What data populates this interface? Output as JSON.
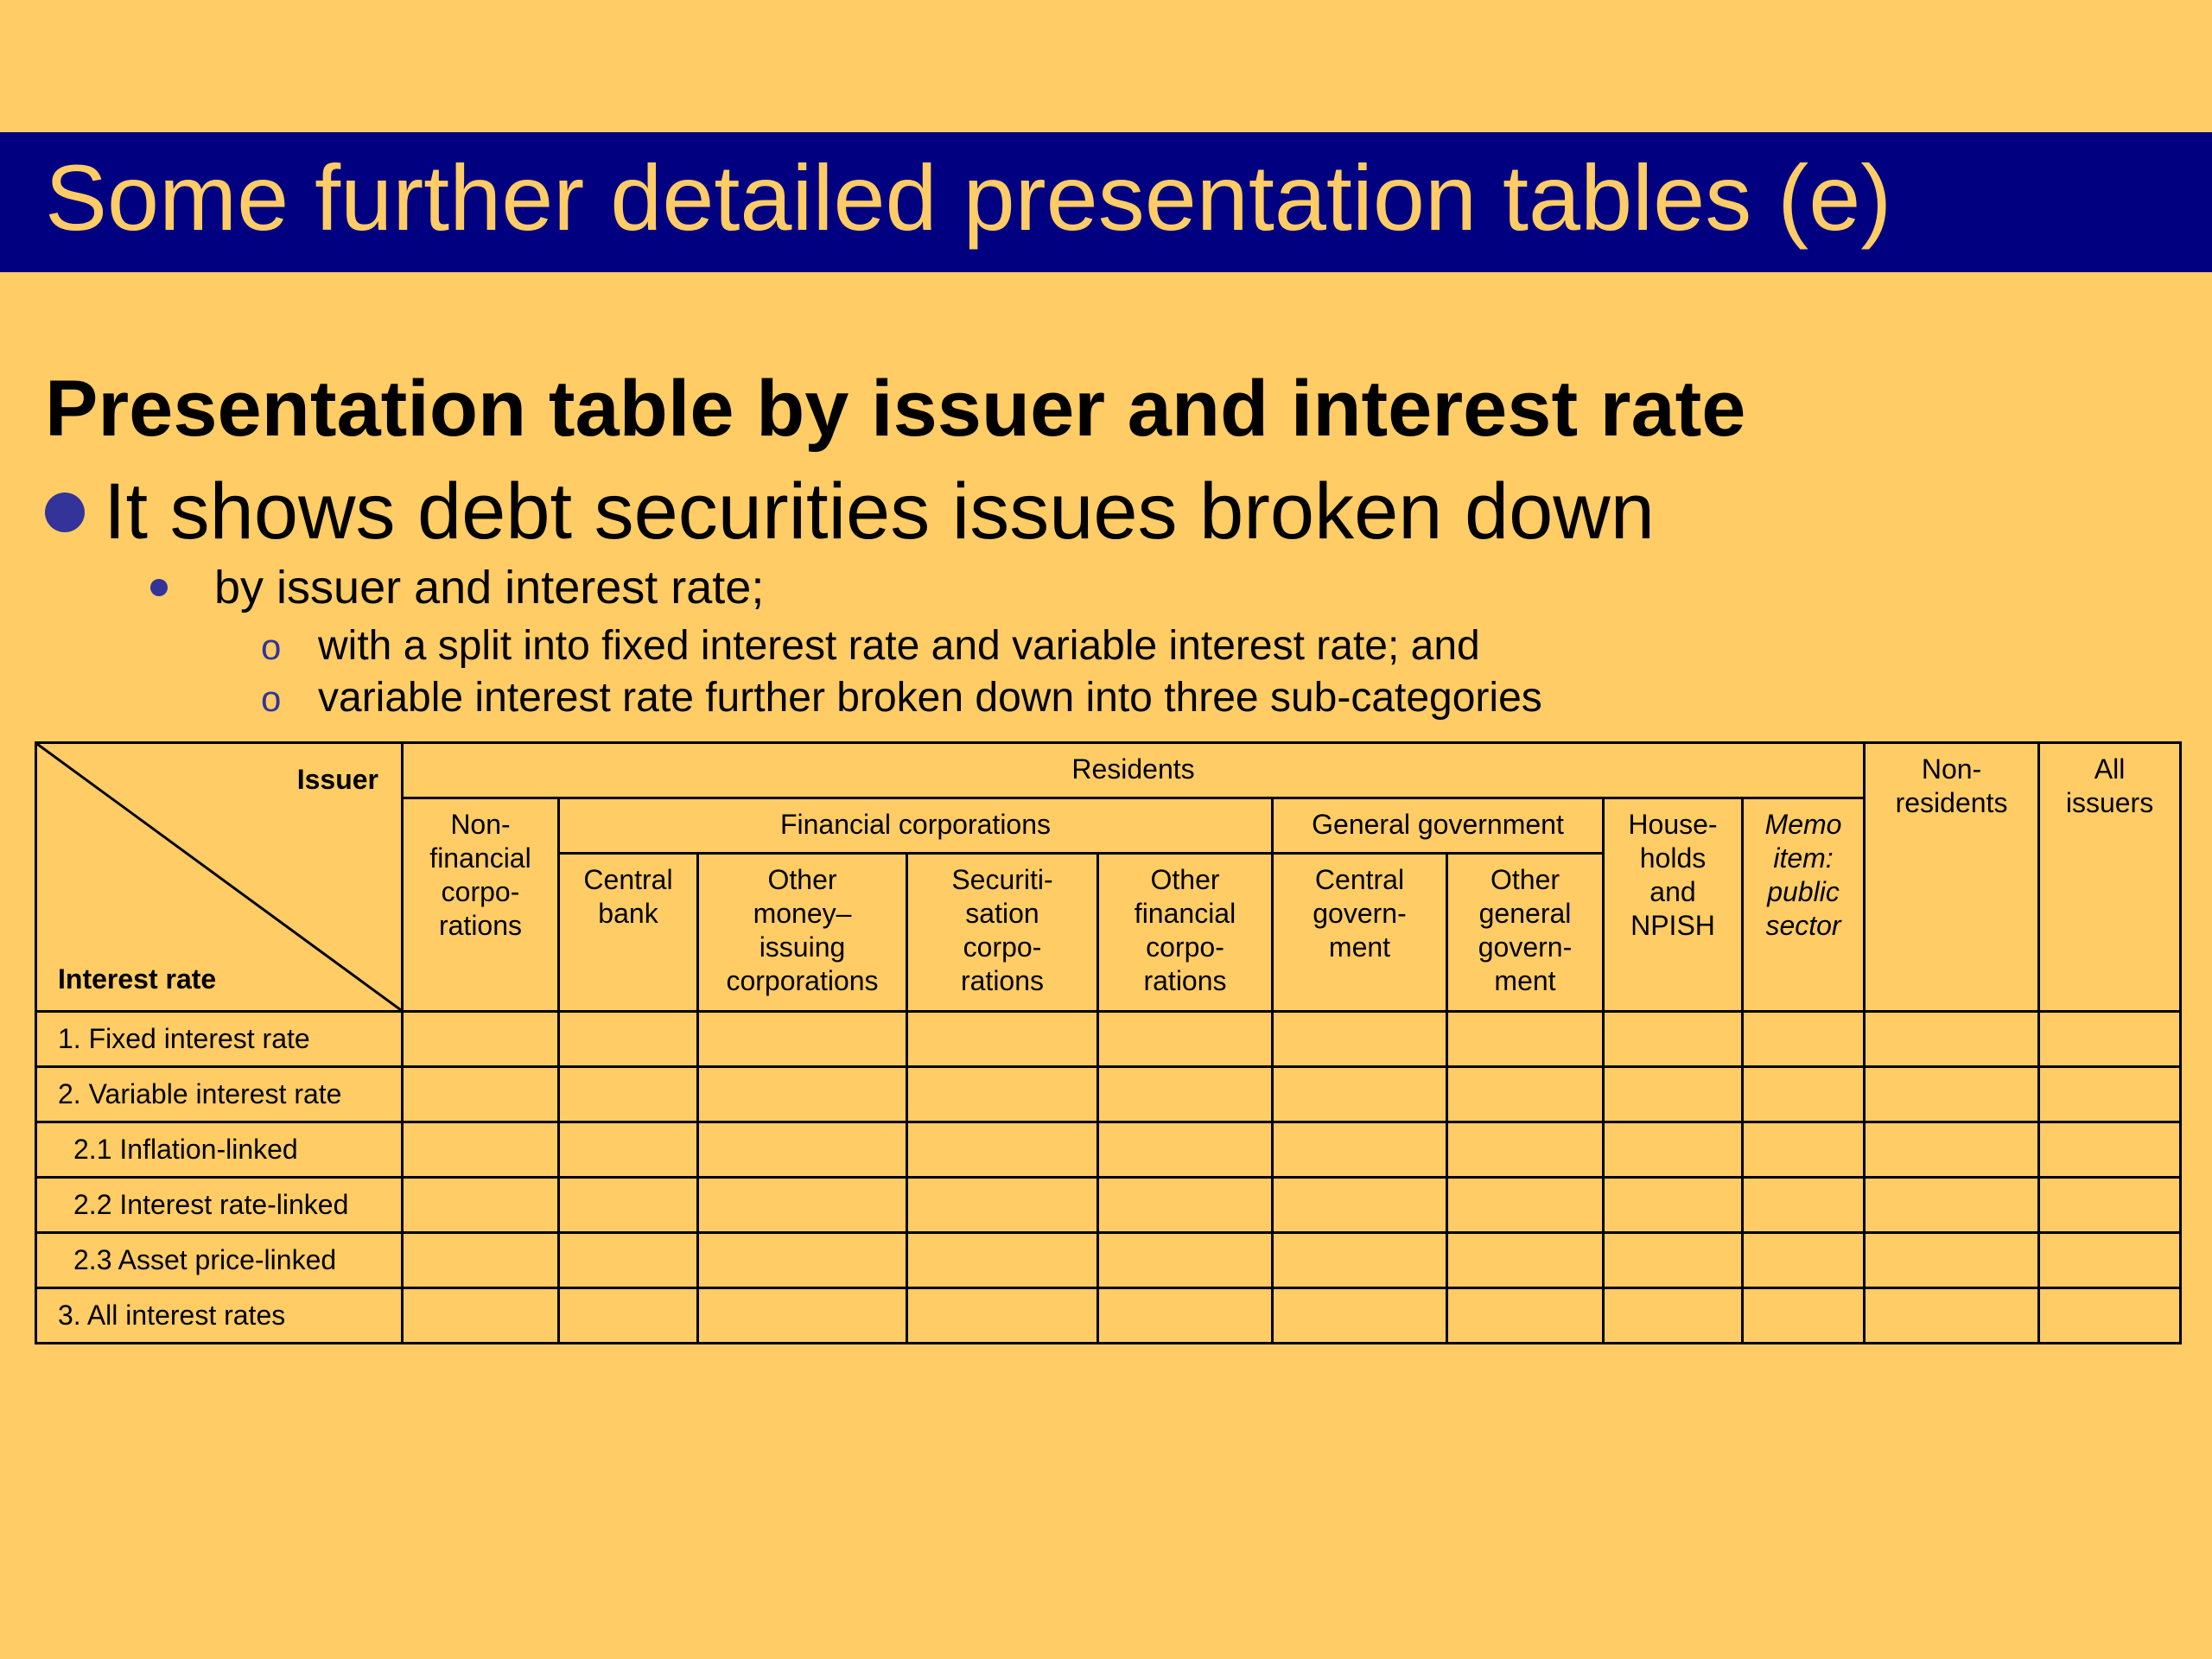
{
  "slide": {
    "title": "Some further detailed presentation tables (e)",
    "heading": "Presentation table by issuer and interest rate",
    "bullet_level1": "It shows debt securities issues broken down",
    "bullet_level2": "by issuer and interest rate;",
    "bullet_level3": [
      {
        "marker": "o",
        "text": "with a split into fixed interest rate and variable interest rate; and"
      },
      {
        "marker": "o",
        "text": "variable interest rate further broken down into three sub-categories"
      }
    ]
  },
  "colors": {
    "background": "#FFCC66",
    "title_bar": "#000080",
    "title_text": "#FFCC66",
    "bullet": "#333399"
  },
  "table": {
    "corner_issuer": "Issuer",
    "corner_interest_rate": "Interest rate",
    "residents": "Residents",
    "non_residents": "Non-\nresidents",
    "all_issuers": "All\nissuers",
    "non_financial": "Non-\nfinancial\ncorpo-\nrations",
    "financial_corporations": "Financial corporations",
    "general_government": "General government",
    "households": "House-\nholds\nand\nNPISH",
    "memo": "Memo\nitem:\npublic\nsector",
    "central_bank": "Central\nbank",
    "other_money_issuing": "Other\nmoney–\nissuing\ncorporations",
    "securitisation": "Securiti-\nsation\ncorpo-\nrations",
    "other_financial": "Other\nfinancial\ncorpo-\nrations",
    "central_government": "Central\ngovern-\nment",
    "other_general_government": "Other\ngeneral\ngovern-\nment",
    "rows": [
      "1. Fixed interest rate",
      "2. Variable interest rate",
      "2.1 Inflation-linked",
      "2.2 Interest rate-linked",
      "2.3 Asset price-linked",
      "3. All interest rates"
    ]
  }
}
